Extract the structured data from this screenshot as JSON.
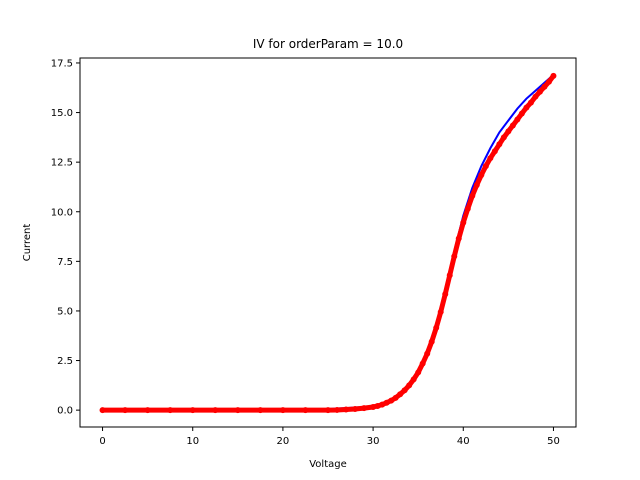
{
  "chart_data": {
    "type": "scatter",
    "title": "IV for orderParam = 10.0",
    "xlabel": "Voltage",
    "ylabel": "Current",
    "xlim": [
      -2.5,
      52.5
    ],
    "ylim": [
      -0.85,
      17.75
    ],
    "xticks": [
      0,
      10,
      20,
      30,
      40,
      50
    ],
    "yticks": [
      0.0,
      2.5,
      5.0,
      7.5,
      10.0,
      12.5,
      15.0,
      17.5
    ],
    "xtick_labels": [
      "0",
      "10",
      "20",
      "30",
      "40",
      "50"
    ],
    "ytick_labels": [
      "0.0",
      "2.5",
      "5.0",
      "7.5",
      "10.0",
      "12.5",
      "15.0",
      "17.5"
    ],
    "grid": false,
    "legend": "none",
    "series": [
      {
        "color": "#0000ff",
        "style": "line",
        "x": [
          0,
          5,
          10,
          15,
          20,
          24,
          25,
          26,
          27,
          28,
          29,
          30,
          31,
          32,
          33,
          34,
          35,
          36,
          37,
          38,
          39,
          40,
          41,
          42,
          43,
          44,
          45,
          46,
          47,
          48,
          49,
          50
        ],
        "y": [
          0,
          0,
          0,
          0,
          0,
          0.02,
          0.05,
          0.08,
          0.1,
          0.13,
          0.15,
          0.2,
          0.3,
          0.5,
          0.8,
          1.2,
          1.8,
          2.8,
          4.2,
          6.0,
          8.0,
          9.8,
          11.2,
          12.3,
          13.2,
          14.0,
          14.6,
          15.2,
          15.7,
          16.1,
          16.5,
          16.9
        ]
      },
      {
        "color": "#ff0000",
        "style": "markers",
        "x": [
          0,
          2.5,
          5,
          7.5,
          10,
          12.5,
          15,
          17.5,
          20,
          22.5,
          25,
          26,
          27,
          28,
          29,
          30,
          30.5,
          31,
          31.5,
          32,
          32.5,
          33,
          33.5,
          34,
          34.5,
          35,
          35.5,
          36,
          36.5,
          37,
          37.5,
          38,
          38.5,
          39,
          39.5,
          40,
          40.5,
          41,
          41.5,
          42,
          42.5,
          43,
          43.5,
          44,
          44.5,
          45,
          45.5,
          46,
          46.5,
          47,
          47.5,
          48,
          48.5,
          49,
          49.5,
          50
        ],
        "y": [
          0,
          0,
          0,
          0,
          0,
          0,
          0,
          0,
          0,
          0,
          0,
          0.01,
          0.03,
          0.06,
          0.1,
          0.16,
          0.21,
          0.28,
          0.37,
          0.48,
          0.62,
          0.8,
          1.0,
          1.25,
          1.55,
          1.9,
          2.35,
          2.85,
          3.45,
          4.15,
          4.95,
          5.85,
          6.8,
          7.75,
          8.65,
          9.45,
          10.15,
          10.8,
          11.35,
          11.85,
          12.3,
          12.7,
          13.05,
          13.4,
          13.75,
          14.05,
          14.35,
          14.65,
          14.95,
          15.25,
          15.5,
          15.8,
          16.05,
          16.3,
          16.55,
          16.85
        ]
      }
    ]
  }
}
